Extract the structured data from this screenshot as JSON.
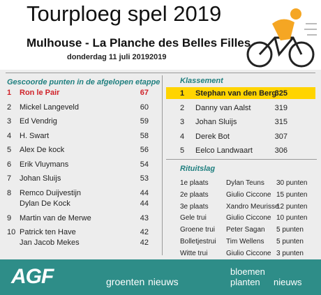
{
  "header": {
    "title": "Tourploeg spel 2019",
    "stage": "Mulhouse - La Planche des Belles Filles",
    "date": "donderdag 11 juli 20192019"
  },
  "stage_points": {
    "heading": "Gescoorde punten in de afgelopen etappe",
    "rows": [
      {
        "rank": "1",
        "names": [
          "Ron le Pair"
        ],
        "points": [
          "67"
        ]
      },
      {
        "rank": "2",
        "names": [
          "Mickel Langeveld"
        ],
        "points": [
          "60"
        ]
      },
      {
        "rank": "3",
        "names": [
          "Ed Vendrig"
        ],
        "points": [
          "59"
        ]
      },
      {
        "rank": "4",
        "names": [
          "H. Swart"
        ],
        "points": [
          "58"
        ]
      },
      {
        "rank": "5",
        "names": [
          "Alex De kock"
        ],
        "points": [
          "56"
        ]
      },
      {
        "rank": "6",
        "names": [
          "Erik Vluymans"
        ],
        "points": [
          "54"
        ]
      },
      {
        "rank": "7",
        "names": [
          "Johan Sluijs"
        ],
        "points": [
          "53"
        ]
      },
      {
        "rank": "8",
        "names": [
          "Remco Duijvestijn",
          "Dylan De Kock"
        ],
        "points": [
          "44",
          "44"
        ]
      },
      {
        "rank": "9",
        "names": [
          "Martin van de Merwe"
        ],
        "points": [
          "43"
        ]
      },
      {
        "rank": "10",
        "names": [
          "Patrick ten Have",
          "Jan Jacob Mekes"
        ],
        "points": [
          "42",
          "42"
        ]
      }
    ]
  },
  "standings": {
    "heading": "Klassement",
    "rows": [
      {
        "rank": "1",
        "name": "Stephan van den Berg",
        "points": "325"
      },
      {
        "rank": "2",
        "name": "Danny van Aalst",
        "points": "319"
      },
      {
        "rank": "3",
        "name": "Johan Sluijs",
        "points": "315"
      },
      {
        "rank": "4",
        "name": "Derek Bot",
        "points": "307"
      },
      {
        "rank": "5",
        "name": "Eelco Landwaart",
        "points": "306"
      }
    ]
  },
  "race_result": {
    "heading": "Rituitslag",
    "rows": [
      {
        "label": "1e plaats",
        "rider": "Dylan Teuns",
        "points": "30 punten"
      },
      {
        "label": "2e plaats",
        "rider": "Giulio Ciccone",
        "points": "15 punten"
      },
      {
        "label": "3e plaats",
        "rider": "Xandro Meurisse",
        "points": "12 punten"
      },
      {
        "label": "Gele trui",
        "rider": "Giulio Ciccone",
        "points": "10 punten"
      },
      {
        "label": "Groene trui",
        "rider": "Peter Sagan",
        "points": "5 punten"
      },
      {
        "label": "Bolletjestrui",
        "rider": "Tim Wellens",
        "points": "5 punten"
      },
      {
        "label": "Witte trui",
        "rider": "Giulio Ciccone",
        "points": "3 punten"
      }
    ]
  },
  "footer": {
    "agf": "AGF",
    "groenten": [
      "groenten",
      "nieuws"
    ],
    "bloemen": [
      "bloemen",
      "planten",
      "nieuws"
    ]
  }
}
